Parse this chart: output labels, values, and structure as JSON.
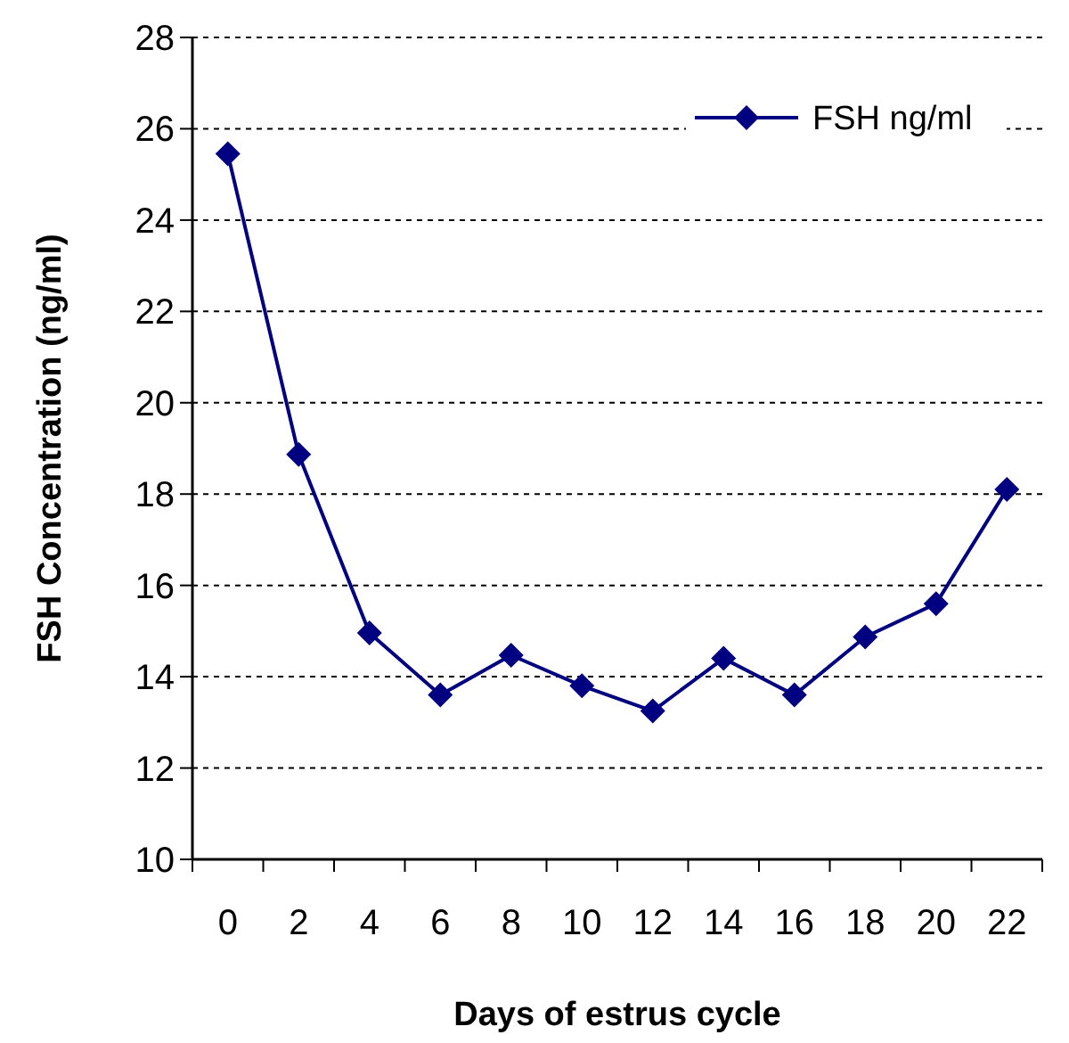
{
  "chart_data": {
    "type": "line",
    "xlabel": "Days of estrus cycle",
    "ylabel": "FSH Concentration (ng/ml)",
    "categories": [
      "0",
      "2",
      "4",
      "6",
      "8",
      "10",
      "12",
      "14",
      "16",
      "18",
      "20",
      "22"
    ],
    "series": [
      {
        "name": "FSH ng/ml",
        "color": "#000080",
        "values": [
          25.45,
          18.87,
          14.96,
          13.6,
          14.47,
          13.8,
          13.25,
          14.4,
          13.6,
          14.87,
          15.6,
          18.1
        ]
      }
    ],
    "ylim": [
      10,
      28
    ],
    "yticks": [
      10,
      12,
      14,
      16,
      18,
      20,
      22,
      24,
      26,
      28
    ],
    "grid": "y",
    "legend": "top right",
    "marker": "diamond",
    "line_style": "solid"
  }
}
